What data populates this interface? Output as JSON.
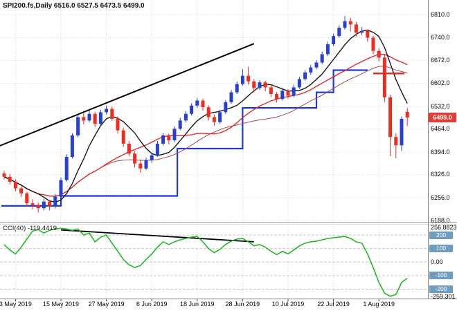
{
  "header": {
    "title": "SPI200.fs,Daily 6516.0 6527.5 6473.5 6499.0"
  },
  "colors": {
    "bull": "#2840d0",
    "bear": "#ef2c22",
    "grid": "#d6d6d6",
    "ma_fast": "#151515",
    "ma_mid": "#e12a2a",
    "ma_slow": "#a84848",
    "step_line": "#2038d8",
    "cci_line": "#22b822",
    "trendline": "#000000",
    "hline": "#e12a2a",
    "price_badge_bg": "#ea3b30",
    "level_badge_bg": "#6e9dbf",
    "axis_text": "#000000"
  },
  "chart_data": {
    "type": "candlestick",
    "symbol": "SPI200.fs",
    "timeframe": "Daily",
    "last_ohlc": {
      "open": 6516.0,
      "high": 6527.5,
      "low": 6473.5,
      "close": 6499.0
    },
    "current_price": "6499.0",
    "ylim": [
      6188,
      6810
    ],
    "y_ticks": [
      "6810.0",
      "6740.0",
      "6672.0",
      "6602.0",
      "6532.0",
      "6464.0",
      "6394.0",
      "6326.0",
      "6256.0",
      "6188.0"
    ],
    "x_ticks": [
      {
        "text": "3 May 2019",
        "bar": 2
      },
      {
        "text": "15 May 2019",
        "bar": 10
      },
      {
        "text": "27 May 2019",
        "bar": 18
      },
      {
        "text": "6 Jun 2019",
        "bar": 26
      },
      {
        "text": "18 Jun 2019",
        "bar": 34
      },
      {
        "text": "28 Jun 2019",
        "bar": 42
      },
      {
        "text": "10 Jul 2019",
        "bar": 50
      },
      {
        "text": "22 Jul 2019",
        "bar": 58
      },
      {
        "text": "1 Aug 2019",
        "bar": 66
      }
    ],
    "candles": [
      [
        6330,
        6338,
        6312,
        6320
      ],
      [
        6320,
        6328,
        6296,
        6305
      ],
      [
        6305,
        6312,
        6276,
        6285
      ],
      [
        6285,
        6292,
        6258,
        6270
      ],
      [
        6270,
        6274,
        6230,
        6240
      ],
      [
        6240,
        6252,
        6222,
        6235
      ],
      [
        6235,
        6242,
        6212,
        6225
      ],
      [
        6225,
        6254,
        6218,
        6245
      ],
      [
        6245,
        6250,
        6218,
        6230
      ],
      [
        6230,
        6268,
        6224,
        6260
      ],
      [
        6260,
        6318,
        6255,
        6310
      ],
      [
        6310,
        6388,
        6305,
        6380
      ],
      [
        6380,
        6452,
        6375,
        6445
      ],
      [
        6445,
        6508,
        6440,
        6500
      ],
      [
        6500,
        6512,
        6478,
        6490
      ],
      [
        6490,
        6520,
        6484,
        6510
      ],
      [
        6510,
        6516,
        6470,
        6480
      ],
      [
        6480,
        6522,
        6474,
        6515
      ],
      [
        6515,
        6535,
        6508,
        6525
      ],
      [
        6525,
        6532,
        6488,
        6495
      ],
      [
        6495,
        6502,
        6450,
        6460
      ],
      [
        6460,
        6468,
        6410,
        6420
      ],
      [
        6420,
        6428,
        6382,
        6390
      ],
      [
        6390,
        6398,
        6348,
        6360
      ],
      [
        6360,
        6372,
        6332,
        6345
      ],
      [
        6345,
        6378,
        6340,
        6370
      ],
      [
        6370,
        6392,
        6362,
        6385
      ],
      [
        6385,
        6428,
        6380,
        6420
      ],
      [
        6420,
        6452,
        6414,
        6445
      ],
      [
        6445,
        6450,
        6418,
        6430
      ],
      [
        6430,
        6472,
        6425,
        6465
      ],
      [
        6465,
        6498,
        6460,
        6490
      ],
      [
        6490,
        6518,
        6484,
        6510
      ],
      [
        6510,
        6542,
        6505,
        6535
      ],
      [
        6535,
        6558,
        6528,
        6550
      ],
      [
        6550,
        6556,
        6520,
        6530
      ],
      [
        6530,
        6536,
        6490,
        6500
      ],
      [
        6500,
        6508,
        6474,
        6485
      ],
      [
        6485,
        6522,
        6480,
        6515
      ],
      [
        6515,
        6552,
        6510,
        6545
      ],
      [
        6545,
        6582,
        6540,
        6575
      ],
      [
        6575,
        6608,
        6570,
        6600
      ],
      [
        6600,
        6645,
        6595,
        6625
      ],
      [
        6625,
        6652,
        6598,
        6608
      ],
      [
        6608,
        6615,
        6575,
        6588
      ],
      [
        6588,
        6612,
        6582,
        6605
      ],
      [
        6605,
        6610,
        6578,
        6590
      ],
      [
        6590,
        6596,
        6560,
        6570
      ],
      [
        6570,
        6576,
        6544,
        6555
      ],
      [
        6555,
        6588,
        6550,
        6580
      ],
      [
        6580,
        6585,
        6556,
        6565
      ],
      [
        6565,
        6598,
        6560,
        6590
      ],
      [
        6590,
        6622,
        6585,
        6615
      ],
      [
        6615,
        6642,
        6610,
        6635
      ],
      [
        6635,
        6658,
        6628,
        6650
      ],
      [
        6650,
        6672,
        6644,
        6665
      ],
      [
        6665,
        6698,
        6660,
        6690
      ],
      [
        6690,
        6728,
        6685,
        6720
      ],
      [
        6720,
        6752,
        6715,
        6745
      ],
      [
        6745,
        6778,
        6740,
        6770
      ],
      [
        6770,
        6805,
        6764,
        6790
      ],
      [
        6790,
        6800,
        6758,
        6780
      ],
      [
        6780,
        6788,
        6744,
        6755
      ],
      [
        6755,
        6772,
        6748,
        6760
      ],
      [
        6760,
        6766,
        6728,
        6740
      ],
      [
        6740,
        6746,
        6690,
        6700
      ],
      [
        6700,
        6708,
        6668,
        6680
      ],
      [
        6680,
        6688,
        6545,
        6560
      ],
      [
        6560,
        6568,
        6382,
        6440
      ],
      [
        6440,
        6452,
        6376,
        6415
      ],
      [
        6415,
        6502,
        6398,
        6495
      ],
      [
        6516,
        6527.5,
        6473.5,
        6499
      ]
    ],
    "overlays": {
      "support_steps": [
        {
          "from": -0.5,
          "to": 10,
          "price": 6232
        },
        {
          "from": 10,
          "to": 30.5,
          "price": 6262
        },
        {
          "from": 30.5,
          "to": 42,
          "price": 6405
        },
        {
          "from": 42,
          "to": 55,
          "price": 6528
        },
        {
          "from": 55,
          "to": 58,
          "price": 6575
        },
        {
          "from": 58,
          "to": 64,
          "price": 6642
        }
      ],
      "trendline": {
        "from_bar": -1,
        "from_price": 6412,
        "to_bar": 44,
        "to_price": 6722
      },
      "hline": {
        "price": 6632,
        "from_bar": 65,
        "to_bar": 70.5
      }
    },
    "indicator": {
      "name": "CCI(40)",
      "label": "CCI(40) -119.4419",
      "current": -119.4419,
      "ylim": [
        -259.301,
        256.8823
      ],
      "max_label": "256.8823",
      "min_label": "-259.301",
      "zero_label": "0.00",
      "level_badges": [
        "200",
        "100",
        "-100",
        "-200"
      ],
      "levels": [
        200,
        100,
        0,
        -100,
        -200
      ],
      "values": [
        130,
        90,
        60,
        110,
        170,
        230,
        240,
        215,
        235,
        245,
        250,
        245,
        235,
        245,
        200,
        215,
        150,
        185,
        200,
        140,
        80,
        20,
        -20,
        -40,
        -25,
        20,
        60,
        110,
        150,
        130,
        150,
        165,
        175,
        185,
        190,
        150,
        100,
        70,
        95,
        130,
        155,
        170,
        175,
        150,
        120,
        130,
        110,
        80,
        55,
        80,
        60,
        90,
        120,
        140,
        150,
        155,
        165,
        175,
        180,
        185,
        190,
        175,
        150,
        140,
        60,
        -40,
        -150,
        -230,
        -252,
        -240,
        -150,
        -119.4419
      ],
      "trendline": {
        "from_bar": 10,
        "from_value": 238,
        "to_bar": 44,
        "to_value": 150
      }
    }
  }
}
